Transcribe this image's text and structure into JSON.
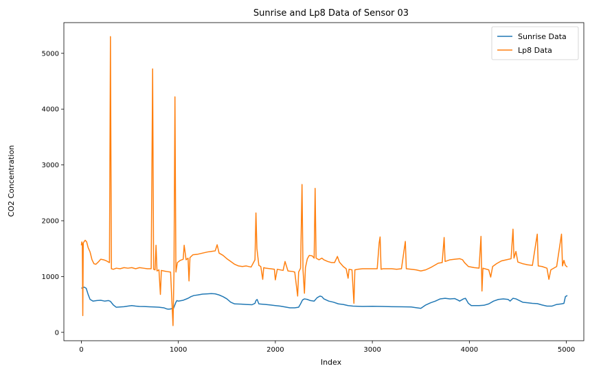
{
  "chart_data": {
    "type": "line",
    "title": "Sunrise and Lp8 Data of Sensor 03",
    "xlabel": "Index",
    "ylabel": "CO2 Concentration",
    "xlim": [
      -180,
      5180
    ],
    "ylim": [
      -150,
      5550
    ],
    "xticks": [
      0,
      1000,
      2000,
      3000,
      4000,
      5000
    ],
    "yticks": [
      0,
      1000,
      2000,
      3000,
      4000,
      5000
    ],
    "legend_position": "top-right",
    "grid": false,
    "series": [
      {
        "name": "Sunrise Data",
        "color": "#1f77b4",
        "points": [
          [
            0,
            790
          ],
          [
            15,
            800
          ],
          [
            30,
            810
          ],
          [
            50,
            790
          ],
          [
            70,
            680
          ],
          [
            90,
            590
          ],
          [
            120,
            560
          ],
          [
            160,
            570
          ],
          [
            200,
            575
          ],
          [
            240,
            560
          ],
          [
            280,
            570
          ],
          [
            300,
            555
          ],
          [
            330,
            490
          ],
          [
            360,
            450
          ],
          [
            400,
            455
          ],
          [
            440,
            460
          ],
          [
            480,
            470
          ],
          [
            520,
            480
          ],
          [
            560,
            470
          ],
          [
            600,
            465
          ],
          [
            650,
            462
          ],
          [
            700,
            458
          ],
          [
            750,
            455
          ],
          [
            800,
            450
          ],
          [
            850,
            440
          ],
          [
            880,
            420
          ],
          [
            900,
            415
          ],
          [
            920,
            420
          ],
          [
            950,
            430
          ],
          [
            975,
            540
          ],
          [
            985,
            570
          ],
          [
            1000,
            560
          ],
          [
            1050,
            575
          ],
          [
            1100,
            610
          ],
          [
            1130,
            640
          ],
          [
            1160,
            660
          ],
          [
            1200,
            670
          ],
          [
            1250,
            685
          ],
          [
            1300,
            690
          ],
          [
            1340,
            695
          ],
          [
            1380,
            690
          ],
          [
            1420,
            670
          ],
          [
            1460,
            640
          ],
          [
            1500,
            600
          ],
          [
            1540,
            540
          ],
          [
            1580,
            510
          ],
          [
            1650,
            505
          ],
          [
            1700,
            500
          ],
          [
            1760,
            495
          ],
          [
            1790,
            520
          ],
          [
            1800,
            570
          ],
          [
            1812,
            590
          ],
          [
            1830,
            510
          ],
          [
            1900,
            500
          ],
          [
            1950,
            490
          ],
          [
            2000,
            480
          ],
          [
            2050,
            470
          ],
          [
            2100,
            455
          ],
          [
            2150,
            440
          ],
          [
            2200,
            440
          ],
          [
            2240,
            450
          ],
          [
            2260,
            510
          ],
          [
            2280,
            580
          ],
          [
            2300,
            600
          ],
          [
            2330,
            590
          ],
          [
            2360,
            570
          ],
          [
            2400,
            560
          ],
          [
            2430,
            620
          ],
          [
            2460,
            650
          ],
          [
            2480,
            640
          ],
          [
            2500,
            600
          ],
          [
            2550,
            560
          ],
          [
            2600,
            540
          ],
          [
            2650,
            510
          ],
          [
            2700,
            500
          ],
          [
            2750,
            480
          ],
          [
            2800,
            470
          ],
          [
            2900,
            465
          ],
          [
            3000,
            468
          ],
          [
            3100,
            465
          ],
          [
            3200,
            460
          ],
          [
            3300,
            458
          ],
          [
            3400,
            455
          ],
          [
            3460,
            440
          ],
          [
            3500,
            430
          ],
          [
            3550,
            490
          ],
          [
            3600,
            530
          ],
          [
            3650,
            560
          ],
          [
            3700,
            600
          ],
          [
            3750,
            610
          ],
          [
            3800,
            600
          ],
          [
            3850,
            605
          ],
          [
            3880,
            580
          ],
          [
            3900,
            560
          ],
          [
            3940,
            600
          ],
          [
            3960,
            610
          ],
          [
            3990,
            520
          ],
          [
            4020,
            480
          ],
          [
            4100,
            480
          ],
          [
            4150,
            485
          ],
          [
            4200,
            510
          ],
          [
            4250,
            560
          ],
          [
            4300,
            590
          ],
          [
            4350,
            600
          ],
          [
            4400,
            590
          ],
          [
            4420,
            560
          ],
          [
            4450,
            610
          ],
          [
            4480,
            600
          ],
          [
            4550,
            540
          ],
          [
            4600,
            530
          ],
          [
            4650,
            520
          ],
          [
            4700,
            515
          ],
          [
            4750,
            490
          ],
          [
            4800,
            470
          ],
          [
            4850,
            470
          ],
          [
            4900,
            500
          ],
          [
            4950,
            510
          ],
          [
            4975,
            520
          ],
          [
            4990,
            640
          ],
          [
            5010,
            660
          ]
        ]
      },
      {
        "name": "Lp8 Data",
        "color": "#ff7f0e",
        "points": [
          [
            0,
            1560
          ],
          [
            5,
            1620
          ],
          [
            10,
            1580
          ],
          [
            15,
            300
          ],
          [
            20,
            1600
          ],
          [
            30,
            1630
          ],
          [
            40,
            1650
          ],
          [
            55,
            1620
          ],
          [
            70,
            1520
          ],
          [
            90,
            1440
          ],
          [
            110,
            1300
          ],
          [
            130,
            1230
          ],
          [
            150,
            1220
          ],
          [
            180,
            1270
          ],
          [
            200,
            1310
          ],
          [
            230,
            1300
          ],
          [
            260,
            1280
          ],
          [
            290,
            1250
          ],
          [
            300,
            5300
          ],
          [
            310,
            1140
          ],
          [
            330,
            1130
          ],
          [
            360,
            1150
          ],
          [
            400,
            1140
          ],
          [
            440,
            1160
          ],
          [
            480,
            1150
          ],
          [
            520,
            1160
          ],
          [
            560,
            1140
          ],
          [
            600,
            1160
          ],
          [
            640,
            1150
          ],
          [
            680,
            1140
          ],
          [
            720,
            1140
          ],
          [
            735,
            4720
          ],
          [
            745,
            1130
          ],
          [
            760,
            1120
          ],
          [
            770,
            1560
          ],
          [
            780,
            1100
          ],
          [
            800,
            1120
          ],
          [
            815,
            680
          ],
          [
            825,
            1110
          ],
          [
            850,
            1100
          ],
          [
            880,
            1090
          ],
          [
            920,
            1080
          ],
          [
            945,
            120
          ],
          [
            955,
            1070
          ],
          [
            965,
            4220
          ],
          [
            975,
            1080
          ],
          [
            990,
            1250
          ],
          [
            1020,
            1290
          ],
          [
            1050,
            1310
          ],
          [
            1060,
            1560
          ],
          [
            1080,
            1300
          ],
          [
            1100,
            1330
          ],
          [
            1110,
            920
          ],
          [
            1120,
            1340
          ],
          [
            1150,
            1390
          ],
          [
            1200,
            1400
          ],
          [
            1250,
            1420
          ],
          [
            1300,
            1440
          ],
          [
            1340,
            1450
          ],
          [
            1380,
            1460
          ],
          [
            1400,
            1570
          ],
          [
            1420,
            1420
          ],
          [
            1460,
            1380
          ],
          [
            1500,
            1320
          ],
          [
            1540,
            1270
          ],
          [
            1580,
            1220
          ],
          [
            1620,
            1190
          ],
          [
            1660,
            1180
          ],
          [
            1700,
            1190
          ],
          [
            1750,
            1170
          ],
          [
            1790,
            1300
          ],
          [
            1800,
            2140
          ],
          [
            1810,
            1500
          ],
          [
            1830,
            1200
          ],
          [
            1850,
            1180
          ],
          [
            1870,
            950
          ],
          [
            1880,
            1160
          ],
          [
            1900,
            1150
          ],
          [
            1950,
            1140
          ],
          [
            1990,
            1130
          ],
          [
            2000,
            940
          ],
          [
            2020,
            1130
          ],
          [
            2080,
            1110
          ],
          [
            2100,
            1270
          ],
          [
            2130,
            1100
          ],
          [
            2180,
            1090
          ],
          [
            2200,
            1080
          ],
          [
            2230,
            650
          ],
          [
            2240,
            1080
          ],
          [
            2260,
            1150
          ],
          [
            2275,
            2650
          ],
          [
            2285,
            1120
          ],
          [
            2300,
            700
          ],
          [
            2310,
            1160
          ],
          [
            2330,
            1320
          ],
          [
            2350,
            1380
          ],
          [
            2380,
            1370
          ],
          [
            2400,
            1330
          ],
          [
            2410,
            2580
          ],
          [
            2420,
            1330
          ],
          [
            2450,
            1300
          ],
          [
            2480,
            1330
          ],
          [
            2500,
            1300
          ],
          [
            2540,
            1270
          ],
          [
            2580,
            1250
          ],
          [
            2610,
            1250
          ],
          [
            2640,
            1360
          ],
          [
            2660,
            1260
          ],
          [
            2700,
            1180
          ],
          [
            2730,
            1140
          ],
          [
            2750,
            970
          ],
          [
            2760,
            1130
          ],
          [
            2790,
            1120
          ],
          [
            2810,
            520
          ],
          [
            2820,
            1120
          ],
          [
            2850,
            1130
          ],
          [
            2900,
            1140
          ],
          [
            2950,
            1140
          ],
          [
            3000,
            1140
          ],
          [
            3050,
            1140
          ],
          [
            3070,
            1600
          ],
          [
            3080,
            1710
          ],
          [
            3090,
            1130
          ],
          [
            3110,
            1140
          ],
          [
            3150,
            1140
          ],
          [
            3200,
            1140
          ],
          [
            3250,
            1130
          ],
          [
            3300,
            1140
          ],
          [
            3340,
            1630
          ],
          [
            3350,
            1140
          ],
          [
            3400,
            1130
          ],
          [
            3450,
            1120
          ],
          [
            3500,
            1100
          ],
          [
            3550,
            1120
          ],
          [
            3600,
            1160
          ],
          [
            3640,
            1200
          ],
          [
            3680,
            1240
          ],
          [
            3720,
            1250
          ],
          [
            3740,
            1700
          ],
          [
            3750,
            1270
          ],
          [
            3800,
            1300
          ],
          [
            3850,
            1310
          ],
          [
            3900,
            1320
          ],
          [
            3930,
            1300
          ],
          [
            3950,
            1250
          ],
          [
            3990,
            1180
          ],
          [
            4050,
            1160
          ],
          [
            4100,
            1150
          ],
          [
            4120,
            1720
          ],
          [
            4130,
            740
          ],
          [
            4140,
            1150
          ],
          [
            4200,
            1120
          ],
          [
            4220,
            990
          ],
          [
            4240,
            1180
          ],
          [
            4280,
            1230
          ],
          [
            4330,
            1280
          ],
          [
            4380,
            1300
          ],
          [
            4430,
            1320
          ],
          [
            4450,
            1850
          ],
          [
            4460,
            1330
          ],
          [
            4480,
            1450
          ],
          [
            4500,
            1260
          ],
          [
            4550,
            1230
          ],
          [
            4600,
            1210
          ],
          [
            4650,
            1200
          ],
          [
            4700,
            1760
          ],
          [
            4710,
            1190
          ],
          [
            4750,
            1180
          ],
          [
            4800,
            1150
          ],
          [
            4820,
            950
          ],
          [
            4840,
            1120
          ],
          [
            4900,
            1180
          ],
          [
            4950,
            1760
          ],
          [
            4960,
            1190
          ],
          [
            4975,
            1290
          ],
          [
            4990,
            1200
          ],
          [
            5010,
            1170
          ]
        ]
      }
    ]
  }
}
